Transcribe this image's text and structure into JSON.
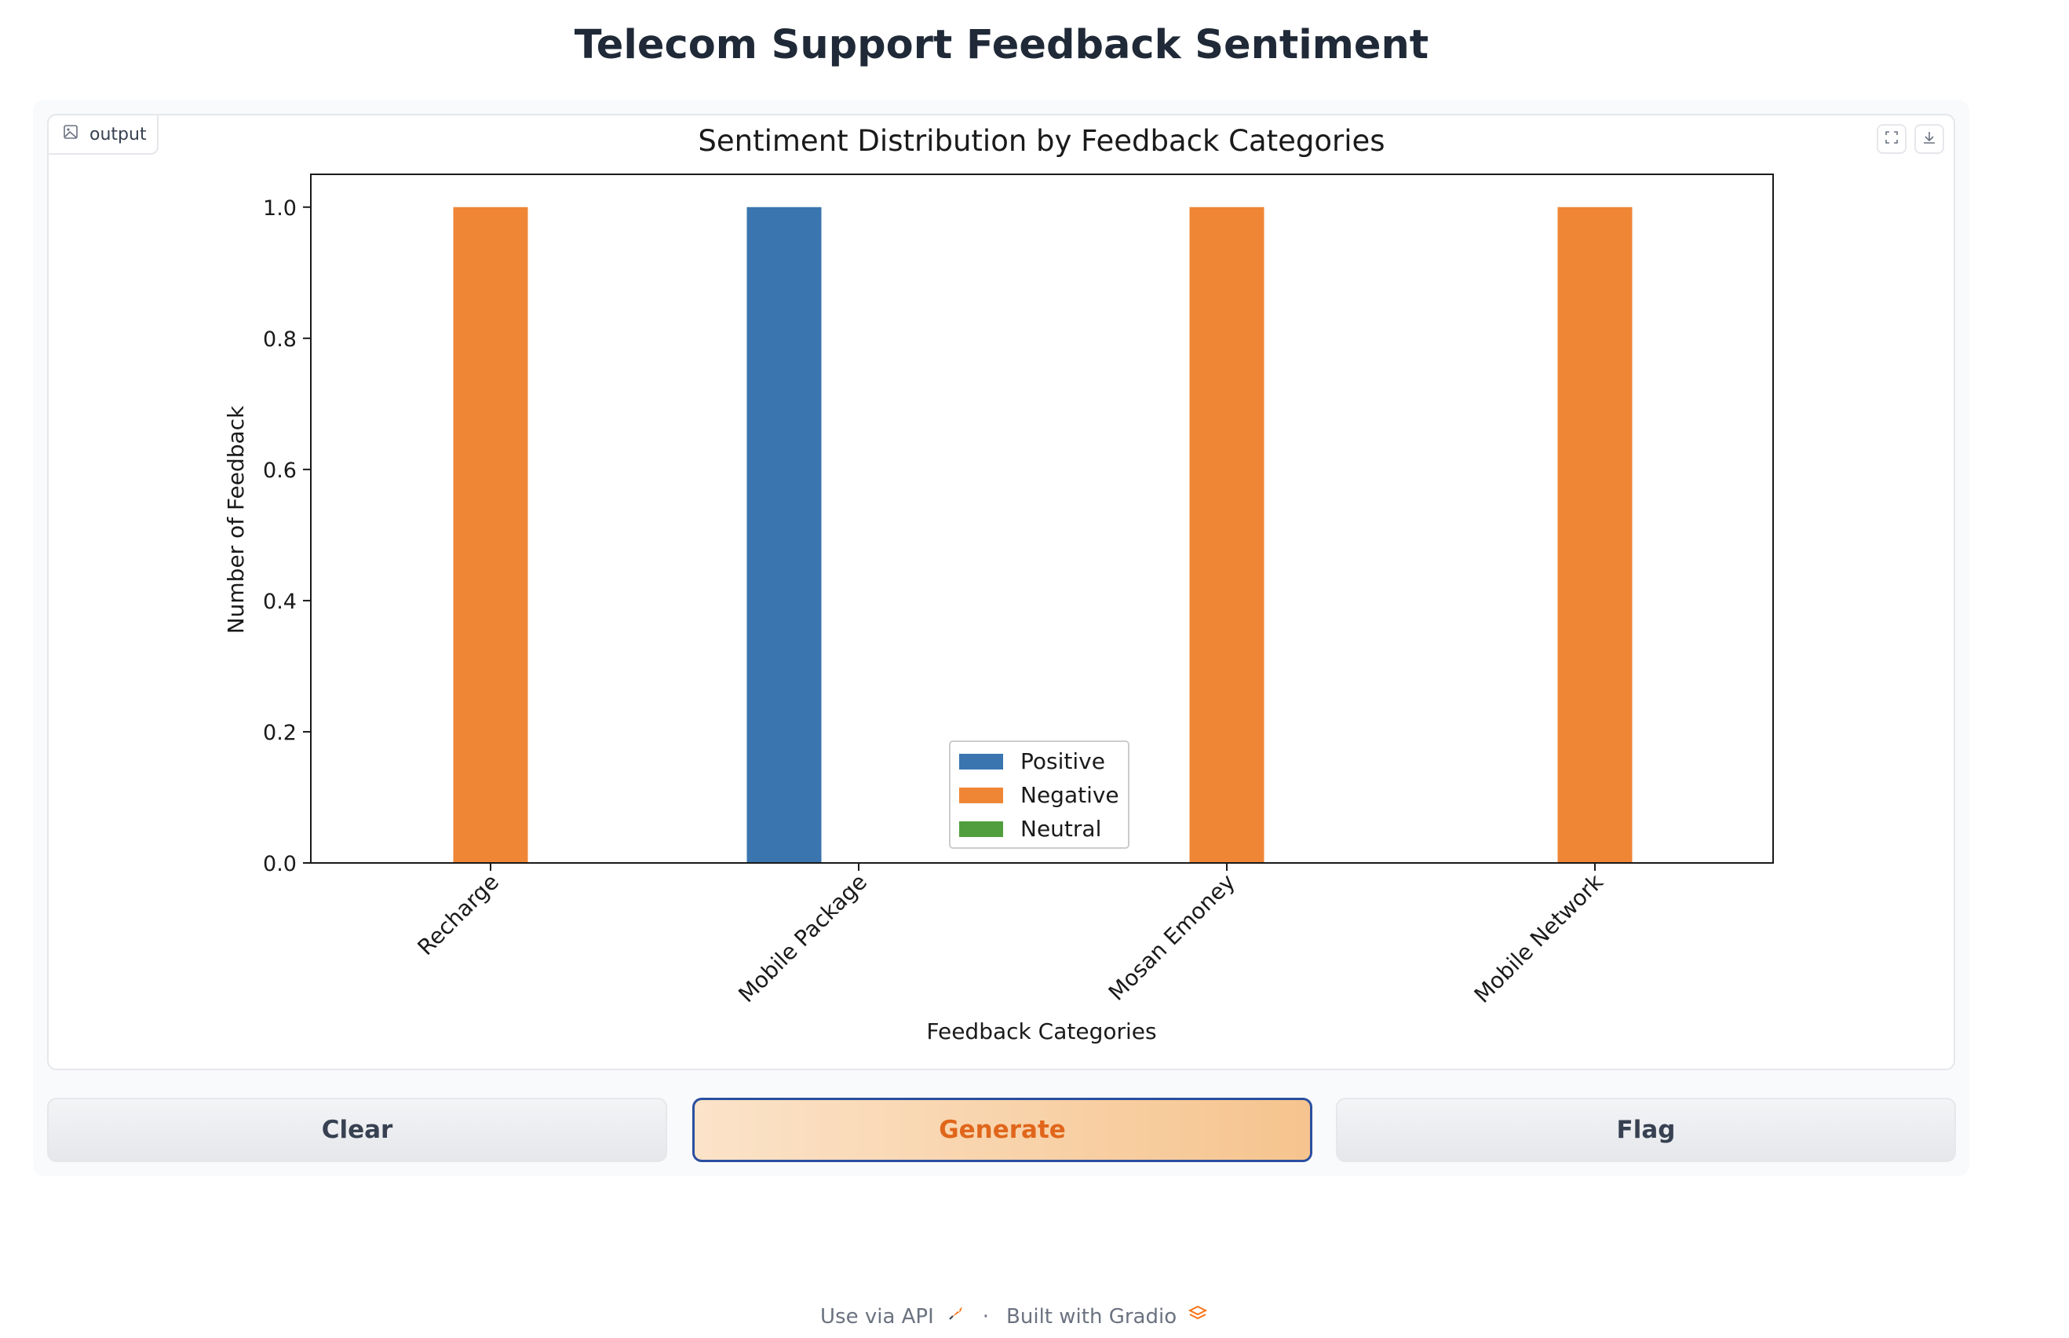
{
  "page": {
    "title": "Telecom Support Feedback Sentiment"
  },
  "output": {
    "label": "output"
  },
  "buttons": {
    "clear": "Clear",
    "generate": "Generate",
    "flag": "Flag"
  },
  "footer": {
    "api": "Use via API",
    "sep": "·",
    "built": "Built with Gradio"
  },
  "colors": {
    "primary_text": "#e0661b",
    "primary_border": "#2a4fa0"
  },
  "icons": [
    "image-icon",
    "fullscreen-icon",
    "download-icon",
    "rocket-icon",
    "gradio-logo-icon"
  ],
  "chart_data": {
    "type": "bar",
    "title": "Sentiment Distribution by Feedback Categories",
    "xlabel": "Feedback Categories",
    "ylabel": "Number of Feedback",
    "categories": [
      "Recharge",
      "Mobile Package",
      "Mosan Emoney",
      "Mobile Network"
    ],
    "series": [
      {
        "name": "Positive",
        "values": [
          0,
          1,
          0,
          0
        ],
        "color": "#3a75b0"
      },
      {
        "name": "Negative",
        "values": [
          1,
          0,
          1,
          1
        ],
        "color": "#ef8636"
      },
      {
        "name": "Neutral",
        "values": [
          0,
          0,
          0,
          0
        ],
        "color": "#519e3e"
      }
    ],
    "ylim": [
      0,
      1.05
    ],
    "yticks": [
      "0.0",
      "0.2",
      "0.4",
      "0.6",
      "0.8",
      "1.0"
    ],
    "grid": false,
    "legend": "lower center"
  }
}
